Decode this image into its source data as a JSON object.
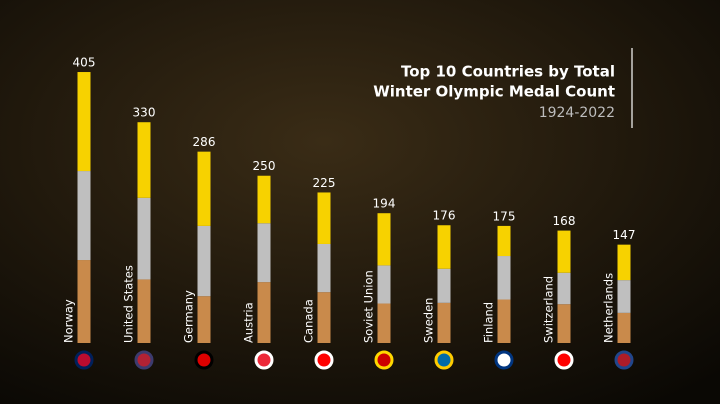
{
  "chart_data": {
    "type": "stacked-bar",
    "title": "Top 10 Countries by Total",
    "subtitle_line": "Winter Olympic Medal Count",
    "period": "1924-2022",
    "categories": [
      "Norway",
      "United States",
      "Germany",
      "Austria",
      "Canada",
      "Soviet Union",
      "Sweden",
      "Finland",
      "Switzerland",
      "Netherlands"
    ],
    "totals": [
      405,
      330,
      286,
      250,
      225,
      194,
      176,
      175,
      168,
      147
    ],
    "series": [
      {
        "color": "#c98a4b",
        "values": [
          124,
          95,
          70,
          91,
          76,
          59,
          60,
          65,
          58,
          45
        ]
      },
      {
        "color": "#bfbfbf",
        "values": [
          133,
          122,
          105,
          88,
          72,
          57,
          51,
          65,
          47,
          49
        ]
      },
      {
        "color": "#f7d200",
        "values": [
          148,
          113,
          111,
          71,
          77,
          78,
          65,
          45,
          63,
          53
        ]
      }
    ],
    "ylim": [
      0,
      420
    ]
  }
}
